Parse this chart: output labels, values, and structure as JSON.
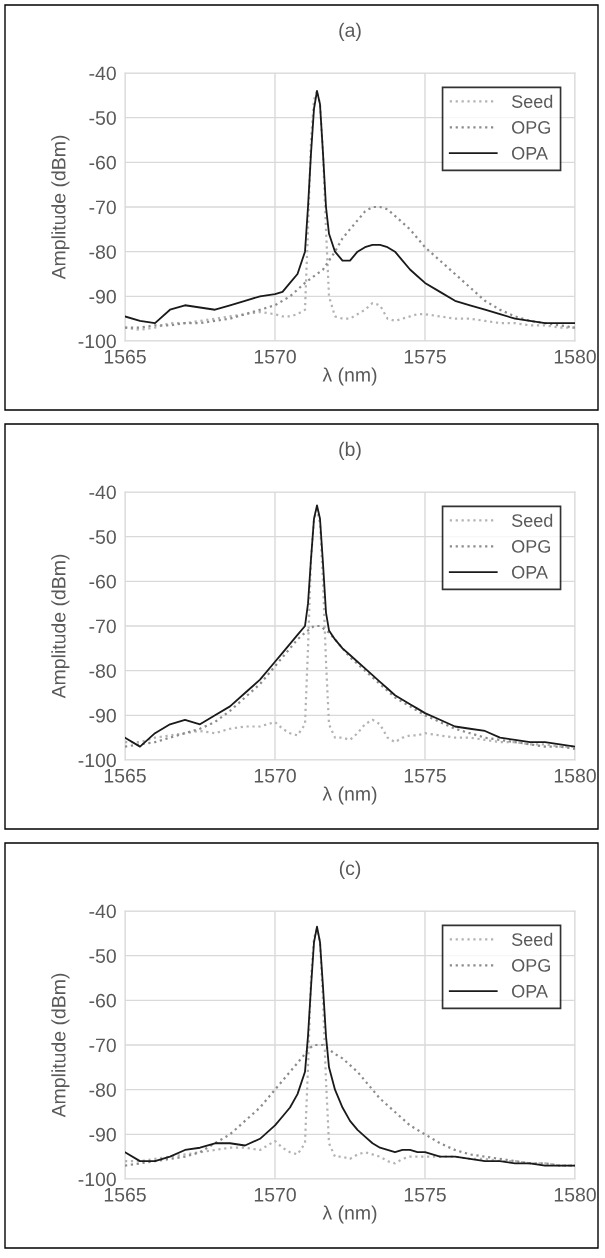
{
  "chart_data": [
    {
      "type": "line",
      "title": "(a)",
      "xlabel": "λ (nm)",
      "ylabel": "Amplitude (dBm)",
      "xlim": [
        1565,
        1580
      ],
      "xticks": [
        1565,
        1570,
        1575,
        1580
      ],
      "ylim": [
        -100,
        -40
      ],
      "yticks": [
        -100,
        -90,
        -80,
        -70,
        -60,
        -50,
        -40
      ],
      "grid": true,
      "legend": "top right",
      "marker": "none",
      "x": [
        1565,
        1565.5,
        1566,
        1566.5,
        1567,
        1567.5,
        1568,
        1568.5,
        1569,
        1569.5,
        1570,
        1570.25,
        1570.5,
        1570.75,
        1571,
        1571.1,
        1571.2,
        1571.3,
        1571.4,
        1571.5,
        1571.6,
        1571.7,
        1571.8,
        1572,
        1572.25,
        1572.5,
        1572.75,
        1573,
        1573.25,
        1573.5,
        1573.75,
        1574,
        1574.25,
        1574.5,
        1574.75,
        1575,
        1575.5,
        1576,
        1576.5,
        1577,
        1577.5,
        1578,
        1578.5,
        1579,
        1579.5,
        1580
      ],
      "series": [
        {
          "name": "Seed",
          "color": "#b3b3b3",
          "line_style": "dotted",
          "values": [
            -97,
            -97.5,
            -97,
            -96,
            -96,
            -95.5,
            -95,
            -94.5,
            -94,
            -93.5,
            -94,
            -94.5,
            -94.5,
            -94,
            -93,
            -75,
            -55,
            -46,
            -44,
            -47,
            -58,
            -75,
            -90,
            -94.5,
            -95,
            -95,
            -94,
            -93,
            -91.5,
            -92,
            -95,
            -95.5,
            -95,
            -94.5,
            -94,
            -94,
            -94.5,
            -95,
            -95,
            -95.5,
            -96,
            -96,
            -96.5,
            -96.5,
            -97,
            -97
          ]
        },
        {
          "name": "OPG",
          "color": "#8c8c8c",
          "line_style": "dotted",
          "values": [
            -97,
            -97,
            -96.5,
            -96.5,
            -96,
            -96,
            -95.5,
            -95,
            -94,
            -93,
            -92,
            -91,
            -90,
            -88.5,
            -87,
            -86.5,
            -86,
            -85.5,
            -85,
            -84.5,
            -84,
            -83,
            -82,
            -80,
            -77,
            -75,
            -73,
            -71,
            -70,
            -70,
            -70.5,
            -72,
            -73.5,
            -75,
            -77,
            -79,
            -82,
            -85,
            -88,
            -91,
            -93,
            -94.5,
            -95.5,
            -96,
            -96.5,
            -97
          ]
        },
        {
          "name": "OPA",
          "color": "#1a1a1a",
          "line_style": "solid",
          "values": [
            -94.5,
            -95.5,
            -96,
            -93,
            -92,
            -92.5,
            -93,
            -92,
            -91,
            -90,
            -89.5,
            -89,
            -87,
            -85,
            -80,
            -70,
            -58,
            -48,
            -44,
            -47,
            -58,
            -70,
            -76,
            -80,
            -82,
            -82,
            -80,
            -79,
            -78.5,
            -78.5,
            -79,
            -80,
            -82,
            -84,
            -85.5,
            -87,
            -89,
            -91,
            -92,
            -93,
            -94,
            -95,
            -95.5,
            -96,
            -96,
            -96
          ]
        }
      ]
    },
    {
      "type": "line",
      "title": "(b)",
      "xlabel": "λ (nm)",
      "ylabel": "Amplitude (dBm)",
      "xlim": [
        1565,
        1580
      ],
      "xticks": [
        1565,
        1570,
        1575,
        1580
      ],
      "ylim": [
        -100,
        -40
      ],
      "yticks": [
        -100,
        -90,
        -80,
        -70,
        -60,
        -50,
        -40
      ],
      "grid": true,
      "legend": "top right",
      "marker": "none",
      "x": [
        1565,
        1565.5,
        1566,
        1566.5,
        1567,
        1567.5,
        1568,
        1568.5,
        1569,
        1569.5,
        1570,
        1570.25,
        1570.5,
        1570.75,
        1571,
        1571.1,
        1571.2,
        1571.3,
        1571.4,
        1571.5,
        1571.6,
        1571.7,
        1571.8,
        1572,
        1572.25,
        1572.5,
        1572.75,
        1573,
        1573.25,
        1573.5,
        1573.75,
        1574,
        1574.25,
        1574.5,
        1574.75,
        1575,
        1575.5,
        1576,
        1576.5,
        1577,
        1577.5,
        1578,
        1578.5,
        1579,
        1579.5,
        1580
      ],
      "series": [
        {
          "name": "Seed",
          "color": "#b3b3b3",
          "line_style": "dotted",
          "values": [
            -96,
            -96,
            -95,
            -94.5,
            -94,
            -93.5,
            -94,
            -93,
            -92.5,
            -92.5,
            -91.5,
            -93,
            -94,
            -94.5,
            -92,
            -75,
            -55,
            -46,
            -44,
            -47,
            -60,
            -78,
            -92,
            -95,
            -95,
            -95.5,
            -94,
            -92,
            -91,
            -92,
            -95,
            -96,
            -95,
            -94.5,
            -94.5,
            -94,
            -94.5,
            -95,
            -95,
            -95.5,
            -96,
            -96,
            -96.5,
            -96.5,
            -97,
            -97
          ]
        },
        {
          "name": "OPG",
          "color": "#8c8c8c",
          "line_style": "dotted",
          "values": [
            -97,
            -96.5,
            -96,
            -95,
            -94,
            -93,
            -91.5,
            -89,
            -86,
            -83,
            -79,
            -77,
            -75,
            -73,
            -71.5,
            -71,
            -70.5,
            -70,
            -70,
            -70,
            -70.5,
            -71,
            -71.5,
            -73,
            -75,
            -77,
            -78.5,
            -80,
            -81.5,
            -83,
            -84.5,
            -86,
            -87,
            -88,
            -89,
            -90,
            -91.5,
            -93,
            -94,
            -95,
            -95.5,
            -96,
            -96.5,
            -97,
            -97,
            -97.5
          ]
        },
        {
          "name": "OPA",
          "color": "#1a1a1a",
          "line_style": "solid",
          "values": [
            -95,
            -97,
            -94,
            -92,
            -91,
            -92,
            -90,
            -88,
            -85,
            -82,
            -78,
            -76,
            -74,
            -72,
            -70,
            -65,
            -55,
            -46,
            -43,
            -46,
            -56,
            -67,
            -71,
            -73,
            -75,
            -76.5,
            -78,
            -79.5,
            -81,
            -82.5,
            -84,
            -85.5,
            -86.5,
            -87.5,
            -88.5,
            -89.5,
            -91,
            -92.5,
            -93,
            -93.5,
            -95,
            -95.5,
            -96,
            -96,
            -96.5,
            -97
          ]
        }
      ]
    },
    {
      "type": "line",
      "title": "(c)",
      "xlabel": "λ (nm)",
      "ylabel": "Amplitude (dBm)",
      "xlim": [
        1565,
        1580
      ],
      "xticks": [
        1565,
        1570,
        1575,
        1580
      ],
      "ylim": [
        -100,
        -40
      ],
      "yticks": [
        -100,
        -90,
        -80,
        -70,
        -60,
        -50,
        -40
      ],
      "grid": true,
      "legend": "top right",
      "marker": "none",
      "x": [
        1565,
        1565.5,
        1566,
        1566.5,
        1567,
        1567.5,
        1568,
        1568.5,
        1569,
        1569.5,
        1570,
        1570.25,
        1570.5,
        1570.75,
        1571,
        1571.1,
        1571.2,
        1571.3,
        1571.4,
        1571.5,
        1571.6,
        1571.7,
        1571.8,
        1572,
        1572.25,
        1572.5,
        1572.75,
        1573,
        1573.25,
        1573.5,
        1573.75,
        1574,
        1574.25,
        1574.5,
        1574.75,
        1575,
        1575.5,
        1576,
        1576.5,
        1577,
        1577.5,
        1578,
        1578.5,
        1579,
        1579.5,
        1580
      ],
      "series": [
        {
          "name": "Seed",
          "color": "#b3b3b3",
          "line_style": "dotted",
          "values": [
            -96,
            -96,
            -95.5,
            -95,
            -94.5,
            -94,
            -93.5,
            -93,
            -93,
            -93.5,
            -91.5,
            -93,
            -94,
            -94.5,
            -92,
            -75,
            -55,
            -46,
            -44,
            -47,
            -60,
            -78,
            -92,
            -95,
            -95,
            -95.5,
            -94.5,
            -94,
            -94.5,
            -95,
            -96,
            -96.5,
            -95.5,
            -95,
            -95,
            -95,
            -95,
            -95,
            -95.5,
            -95.5,
            -96,
            -96,
            -96.5,
            -96.5,
            -97,
            -97
          ]
        },
        {
          "name": "OPG",
          "color": "#8c8c8c",
          "line_style": "dotted",
          "values": [
            -97,
            -96.5,
            -96,
            -95.5,
            -95,
            -94,
            -92,
            -90,
            -87,
            -84,
            -80,
            -78,
            -76,
            -74,
            -72,
            -71,
            -70.5,
            -70,
            -70,
            -70,
            -70,
            -70.5,
            -71,
            -72,
            -73,
            -74.5,
            -76,
            -78,
            -80,
            -82,
            -83.5,
            -85,
            -86.5,
            -88,
            -89,
            -90,
            -92,
            -93.5,
            -94.5,
            -95,
            -95.5,
            -96,
            -96.5,
            -96.5,
            -97,
            -97
          ]
        },
        {
          "name": "OPA",
          "color": "#1a1a1a",
          "line_style": "solid",
          "values": [
            -94,
            -96,
            -96,
            -95,
            -93.5,
            -93,
            -92,
            -92,
            -92.5,
            -91,
            -88,
            -86,
            -84,
            -81,
            -76,
            -68,
            -57,
            -47,
            -43.5,
            -47,
            -57,
            -68,
            -75,
            -80,
            -84,
            -87,
            -89,
            -90.5,
            -92,
            -93,
            -93.5,
            -94,
            -93.5,
            -93.5,
            -94,
            -94,
            -95,
            -95,
            -95.5,
            -96,
            -96,
            -96.5,
            -96.5,
            -97,
            -97,
            -97
          ]
        }
      ]
    }
  ]
}
